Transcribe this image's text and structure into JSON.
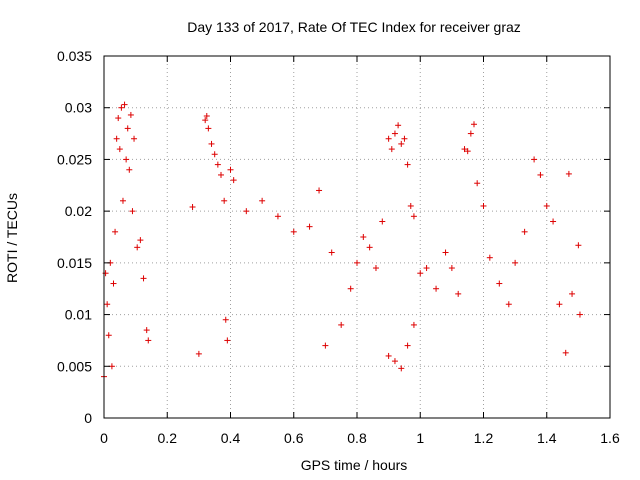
{
  "chart_data": {
    "type": "scatter",
    "title": "Day 133 of 2017, Rate Of TEC Index for receiver graz",
    "xlabel": "GPS time / hours",
    "ylabel": "ROTI / TECUs",
    "xlim": [
      0,
      1.6
    ],
    "ylim": [
      0,
      0.035
    ],
    "xticks": [
      {
        "value": 0,
        "label": "0"
      },
      {
        "value": 0.2,
        "label": "0.2"
      },
      {
        "value": 0.4,
        "label": "0.4"
      },
      {
        "value": 0.6,
        "label": "0.6"
      },
      {
        "value": 0.8,
        "label": "0.8"
      },
      {
        "value": 1.0,
        "label": "1"
      },
      {
        "value": 1.2,
        "label": "1.2"
      },
      {
        "value": 1.4,
        "label": "1.4"
      },
      {
        "value": 1.6,
        "label": "1.6"
      }
    ],
    "yticks": [
      {
        "value": 0,
        "label": "0"
      },
      {
        "value": 0.005,
        "label": "0.005"
      },
      {
        "value": 0.01,
        "label": "0.01"
      },
      {
        "value": 0.015,
        "label": "0.015"
      },
      {
        "value": 0.02,
        "label": "0.02"
      },
      {
        "value": 0.025,
        "label": "0.025"
      },
      {
        "value": 0.03,
        "label": "0.03"
      },
      {
        "value": 0.035,
        "label": "0.035"
      }
    ],
    "grid": true,
    "marker": "plus",
    "color": "#dd0000",
    "series": [
      {
        "name": "ROTI",
        "points": [
          [
            0.0,
            0.004
          ],
          [
            0.005,
            0.014
          ],
          [
            0.01,
            0.011
          ],
          [
            0.015,
            0.008
          ],
          [
            0.02,
            0.015
          ],
          [
            0.025,
            0.005
          ],
          [
            0.03,
            0.013
          ],
          [
            0.035,
            0.018
          ],
          [
            0.04,
            0.027
          ],
          [
            0.045,
            0.029
          ],
          [
            0.05,
            0.026
          ],
          [
            0.055,
            0.03
          ],
          [
            0.06,
            0.021
          ],
          [
            0.065,
            0.0303
          ],
          [
            0.07,
            0.025
          ],
          [
            0.075,
            0.028
          ],
          [
            0.08,
            0.024
          ],
          [
            0.085,
            0.0293
          ],
          [
            0.09,
            0.02
          ],
          [
            0.095,
            0.027
          ],
          [
            0.105,
            0.0165
          ],
          [
            0.115,
            0.0172
          ],
          [
            0.125,
            0.0135
          ],
          [
            0.135,
            0.0085
          ],
          [
            0.14,
            0.0075
          ],
          [
            0.28,
            0.0204
          ],
          [
            0.3,
            0.0062
          ],
          [
            0.32,
            0.0288
          ],
          [
            0.325,
            0.0292
          ],
          [
            0.33,
            0.028
          ],
          [
            0.34,
            0.0265
          ],
          [
            0.35,
            0.0255
          ],
          [
            0.36,
            0.0245
          ],
          [
            0.37,
            0.0235
          ],
          [
            0.38,
            0.021
          ],
          [
            0.385,
            0.0095
          ],
          [
            0.39,
            0.0075
          ],
          [
            0.4,
            0.024
          ],
          [
            0.41,
            0.023
          ],
          [
            0.45,
            0.02
          ],
          [
            0.5,
            0.021
          ],
          [
            0.55,
            0.0195
          ],
          [
            0.6,
            0.018
          ],
          [
            0.65,
            0.0185
          ],
          [
            0.68,
            0.022
          ],
          [
            0.7,
            0.007
          ],
          [
            0.72,
            0.016
          ],
          [
            0.75,
            0.009
          ],
          [
            0.78,
            0.0125
          ],
          [
            0.8,
            0.015
          ],
          [
            0.82,
            0.0175
          ],
          [
            0.84,
            0.0165
          ],
          [
            0.86,
            0.0145
          ],
          [
            0.88,
            0.019
          ],
          [
            0.9,
            0.027
          ],
          [
            0.91,
            0.026
          ],
          [
            0.92,
            0.0275
          ],
          [
            0.93,
            0.0283
          ],
          [
            0.94,
            0.0265
          ],
          [
            0.95,
            0.027
          ],
          [
            0.96,
            0.0245
          ],
          [
            0.97,
            0.0205
          ],
          [
            0.98,
            0.0195
          ],
          [
            0.9,
            0.006
          ],
          [
            0.92,
            0.0055
          ],
          [
            0.94,
            0.0048
          ],
          [
            0.96,
            0.007
          ],
          [
            0.98,
            0.009
          ],
          [
            1.0,
            0.014
          ],
          [
            1.02,
            0.0145
          ],
          [
            1.05,
            0.0125
          ],
          [
            1.08,
            0.016
          ],
          [
            1.1,
            0.0145
          ],
          [
            1.12,
            0.012
          ],
          [
            1.14,
            0.026
          ],
          [
            1.15,
            0.0258
          ],
          [
            1.16,
            0.0275
          ],
          [
            1.17,
            0.0284
          ],
          [
            1.18,
            0.0227
          ],
          [
            1.2,
            0.0205
          ],
          [
            1.22,
            0.0155
          ],
          [
            1.25,
            0.013
          ],
          [
            1.28,
            0.011
          ],
          [
            1.3,
            0.015
          ],
          [
            1.33,
            0.018
          ],
          [
            1.36,
            0.025
          ],
          [
            1.38,
            0.0235
          ],
          [
            1.4,
            0.0205
          ],
          [
            1.42,
            0.019
          ],
          [
            1.44,
            0.011
          ],
          [
            1.46,
            0.0063
          ],
          [
            1.47,
            0.0236
          ],
          [
            1.48,
            0.012
          ],
          [
            1.5,
            0.0167
          ],
          [
            1.505,
            0.01
          ]
        ]
      }
    ]
  }
}
